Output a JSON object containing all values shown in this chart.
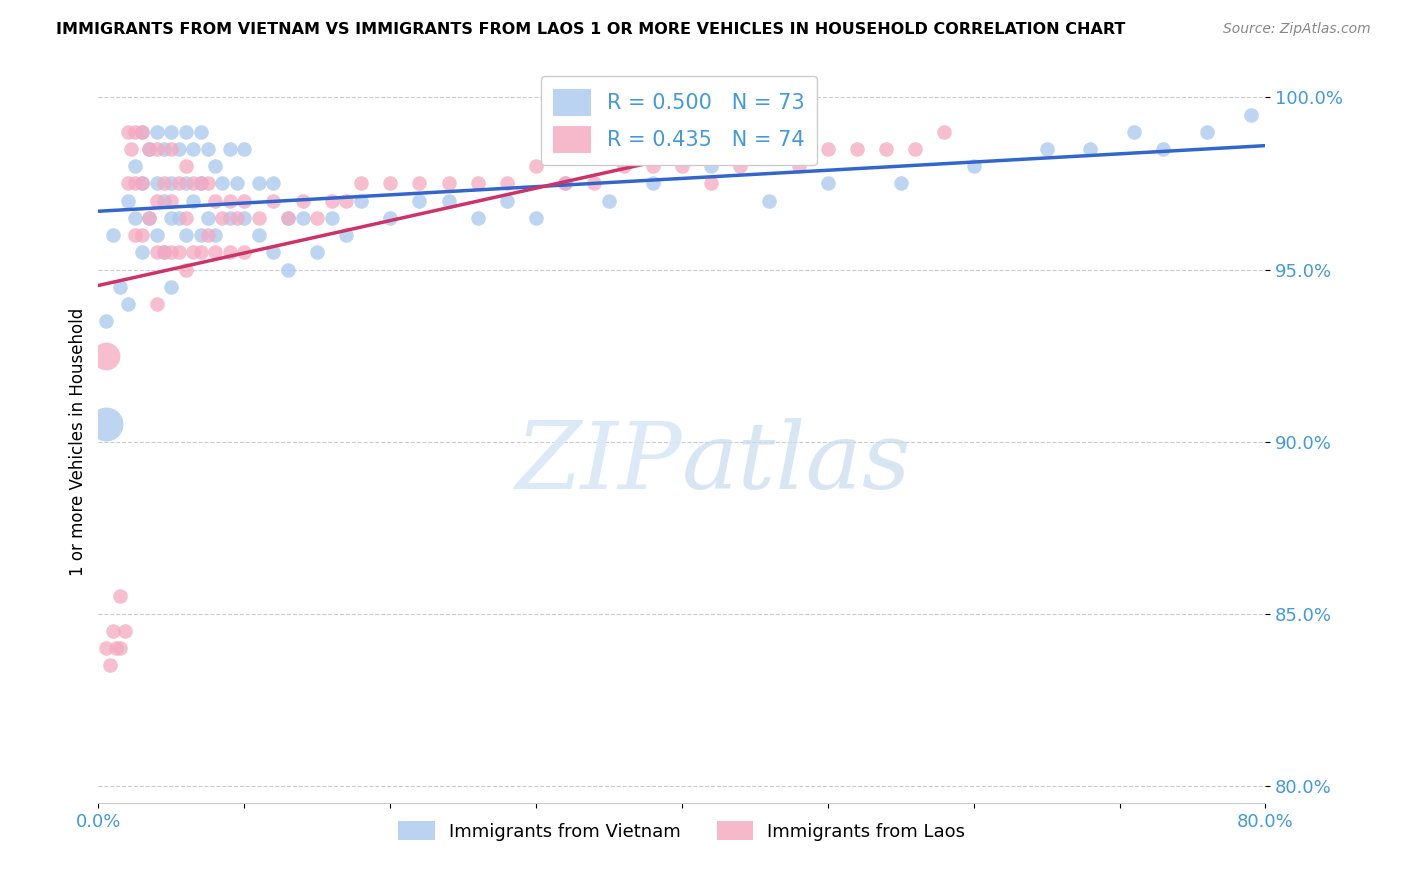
{
  "title": "IMMIGRANTS FROM VIETNAM VS IMMIGRANTS FROM LAOS 1 OR MORE VEHICLES IN HOUSEHOLD CORRELATION CHART",
  "source": "Source: ZipAtlas.com",
  "ylabel": "1 or more Vehicles in Household",
  "xlim": [
    0.0,
    0.8
  ],
  "ylim": [
    0.795,
    1.005
  ],
  "yticks": [
    0.8,
    0.85,
    0.9,
    0.95,
    1.0
  ],
  "ytick_labels": [
    "80.0%",
    "85.0%",
    "90.0%",
    "95.0%",
    "100.0%"
  ],
  "xticks": [
    0.0,
    0.1,
    0.2,
    0.3,
    0.4,
    0.5,
    0.6,
    0.7,
    0.8
  ],
  "xtick_labels": [
    "0.0%",
    "",
    "",
    "",
    "",
    "",
    "",
    "",
    "80.0%"
  ],
  "legend_R_vietnam": "R = 0.500",
  "legend_N_vietnam": "N = 73",
  "legend_R_laos": "R = 0.435",
  "legend_N_laos": "N = 74",
  "color_vietnam": "#A8C8EE",
  "color_laos": "#F4A8C0",
  "trendline_vietnam": "#3366CC",
  "trendline_laos": "#CC3366",
  "axis_color": "#4499DD",
  "grid_color": "#CCCCCC",
  "watermark_zip": "ZIP",
  "watermark_atlas": "atlas",
  "vietnam_x": [
    0.005,
    0.01,
    0.015,
    0.02,
    0.02,
    0.025,
    0.025,
    0.03,
    0.03,
    0.03,
    0.035,
    0.035,
    0.04,
    0.04,
    0.04,
    0.045,
    0.045,
    0.045,
    0.05,
    0.05,
    0.05,
    0.05,
    0.055,
    0.055,
    0.06,
    0.06,
    0.06,
    0.065,
    0.065,
    0.07,
    0.07,
    0.07,
    0.075,
    0.075,
    0.08,
    0.08,
    0.085,
    0.09,
    0.09,
    0.095,
    0.1,
    0.1,
    0.11,
    0.11,
    0.12,
    0.12,
    0.13,
    0.13,
    0.14,
    0.15,
    0.16,
    0.17,
    0.18,
    0.2,
    0.22,
    0.24,
    0.26,
    0.28,
    0.3,
    0.32,
    0.35,
    0.38,
    0.42,
    0.46,
    0.5,
    0.55,
    0.6,
    0.65,
    0.68,
    0.71,
    0.73,
    0.76,
    0.79
  ],
  "vietnam_y": [
    0.935,
    0.96,
    0.945,
    0.97,
    0.94,
    0.98,
    0.965,
    0.99,
    0.975,
    0.955,
    0.985,
    0.965,
    0.99,
    0.975,
    0.96,
    0.985,
    0.97,
    0.955,
    0.99,
    0.975,
    0.965,
    0.945,
    0.985,
    0.965,
    0.99,
    0.975,
    0.96,
    0.985,
    0.97,
    0.99,
    0.975,
    0.96,
    0.985,
    0.965,
    0.98,
    0.96,
    0.975,
    0.985,
    0.965,
    0.975,
    0.985,
    0.965,
    0.975,
    0.96,
    0.975,
    0.955,
    0.965,
    0.95,
    0.965,
    0.955,
    0.965,
    0.96,
    0.97,
    0.965,
    0.97,
    0.97,
    0.965,
    0.97,
    0.965,
    0.975,
    0.97,
    0.975,
    0.98,
    0.97,
    0.975,
    0.975,
    0.98,
    0.985,
    0.985,
    0.99,
    0.985,
    0.99,
    0.995
  ],
  "vietnam_sizes": [
    80,
    80,
    80,
    80,
    80,
    80,
    80,
    80,
    80,
    80,
    80,
    80,
    80,
    80,
    80,
    80,
    80,
    80,
    80,
    80,
    80,
    80,
    80,
    80,
    80,
    80,
    80,
    80,
    80,
    80,
    80,
    80,
    80,
    80,
    80,
    80,
    80,
    80,
    80,
    80,
    80,
    80,
    80,
    80,
    80,
    80,
    80,
    80,
    80,
    80,
    80,
    80,
    80,
    80,
    80,
    80,
    80,
    80,
    80,
    80,
    80,
    80,
    80,
    80,
    80,
    80,
    80,
    80,
    80,
    80,
    80,
    80,
    80
  ],
  "laos_x": [
    0.005,
    0.008,
    0.01,
    0.012,
    0.015,
    0.015,
    0.018,
    0.02,
    0.02,
    0.022,
    0.025,
    0.025,
    0.025,
    0.03,
    0.03,
    0.03,
    0.035,
    0.035,
    0.04,
    0.04,
    0.04,
    0.04,
    0.045,
    0.045,
    0.05,
    0.05,
    0.05,
    0.055,
    0.055,
    0.06,
    0.06,
    0.06,
    0.065,
    0.065,
    0.07,
    0.07,
    0.075,
    0.075,
    0.08,
    0.08,
    0.085,
    0.09,
    0.09,
    0.095,
    0.1,
    0.1,
    0.11,
    0.12,
    0.13,
    0.14,
    0.15,
    0.16,
    0.17,
    0.18,
    0.2,
    0.22,
    0.24,
    0.26,
    0.28,
    0.3,
    0.32,
    0.34,
    0.36,
    0.38,
    0.4,
    0.42,
    0.44,
    0.46,
    0.48,
    0.5,
    0.52,
    0.54,
    0.56,
    0.58
  ],
  "laos_y": [
    0.84,
    0.835,
    0.845,
    0.84,
    0.855,
    0.84,
    0.845,
    0.99,
    0.975,
    0.985,
    0.99,
    0.975,
    0.96,
    0.99,
    0.975,
    0.96,
    0.985,
    0.965,
    0.985,
    0.97,
    0.955,
    0.94,
    0.975,
    0.955,
    0.985,
    0.97,
    0.955,
    0.975,
    0.955,
    0.98,
    0.965,
    0.95,
    0.975,
    0.955,
    0.975,
    0.955,
    0.975,
    0.96,
    0.97,
    0.955,
    0.965,
    0.97,
    0.955,
    0.965,
    0.97,
    0.955,
    0.965,
    0.97,
    0.965,
    0.97,
    0.965,
    0.97,
    0.97,
    0.975,
    0.975,
    0.975,
    0.975,
    0.975,
    0.975,
    0.98,
    0.975,
    0.975,
    0.98,
    0.98,
    0.98,
    0.975,
    0.98,
    0.985,
    0.98,
    0.985,
    0.985,
    0.985,
    0.985,
    0.99
  ],
  "vietnam_large_x": [
    0.005
  ],
  "vietnam_large_y": [
    0.905
  ],
  "laos_large_x": [
    0.005
  ],
  "laos_large_y": [
    0.925
  ]
}
